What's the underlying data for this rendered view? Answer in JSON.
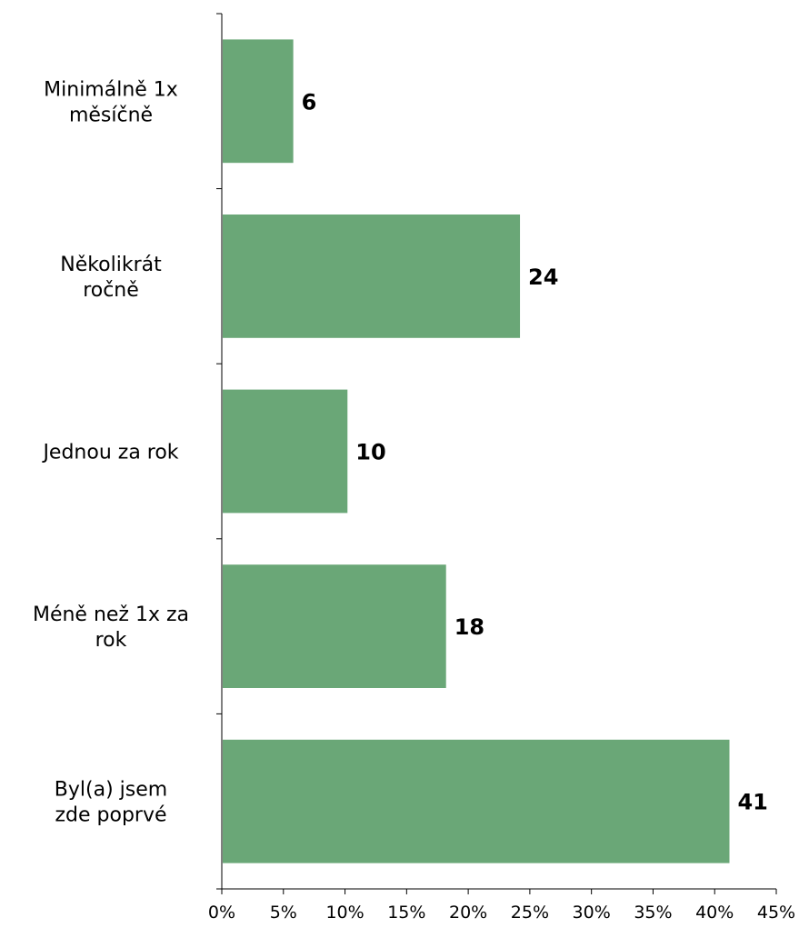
{
  "chart_data": {
    "type": "bar",
    "orientation": "horizontal",
    "categories": [
      [
        "Minimálně 1x",
        "měsíčně"
      ],
      [
        "Několikrát",
        "ročně"
      ],
      [
        "Jednou za rok"
      ],
      [
        "Méně než 1x za",
        "rok"
      ],
      [
        "Byl(a) jsem",
        "zde poprvé"
      ]
    ],
    "values": [
      6,
      24,
      10,
      18,
      41
    ],
    "data_labels": [
      "6",
      "24",
      "10",
      "18",
      "41"
    ],
    "plotted_values": [
      5.8,
      24.2,
      10.2,
      18.2,
      41.2
    ],
    "xlim": [
      0,
      45
    ],
    "x_ticks": [
      0,
      5,
      10,
      15,
      20,
      25,
      30,
      35,
      40,
      45
    ],
    "x_tick_labels": [
      "0%",
      "5%",
      "10%",
      "15%",
      "20%",
      "25%",
      "30%",
      "35%",
      "40%",
      "45%"
    ],
    "title": "",
    "xlabel": "",
    "ylabel": "",
    "grid": false,
    "legend": "none",
    "bar_color": "#6aa777"
  }
}
